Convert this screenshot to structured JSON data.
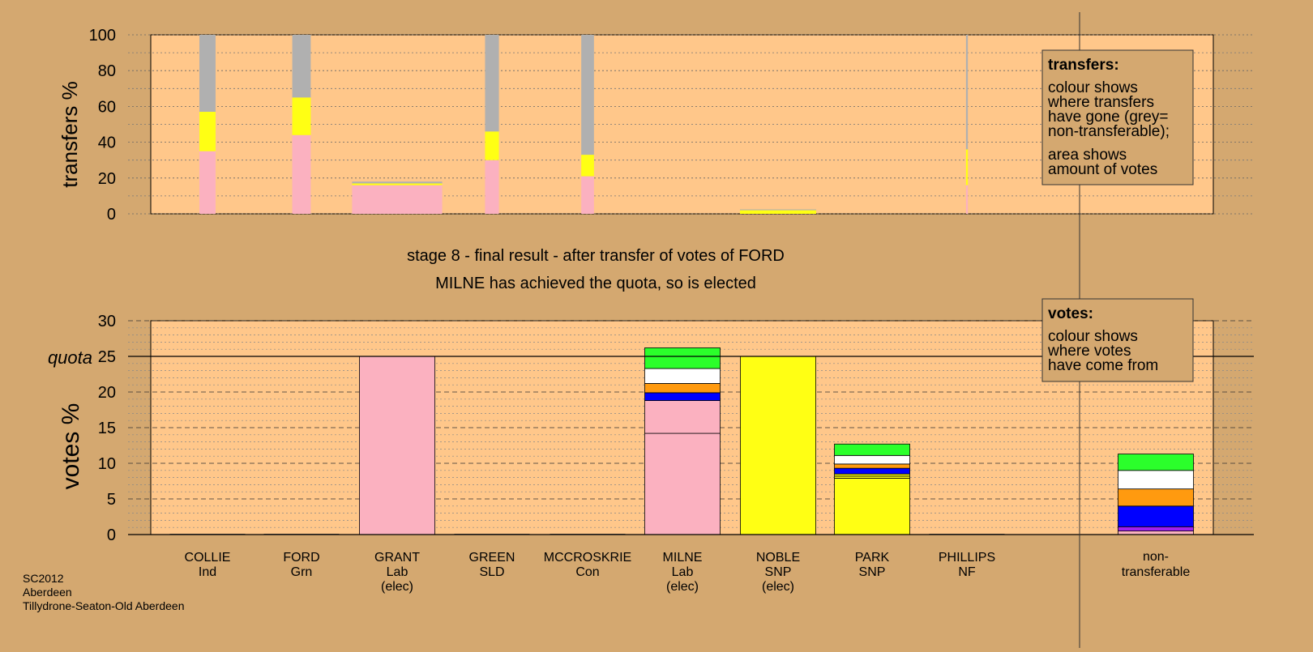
{
  "colors": {
    "background": "#d4a870",
    "plot_area": "#ffc78a",
    "Lab": "#fbb1c0",
    "SNP": "#ffff14",
    "Con": "#0000ff",
    "Grn": "#2bff2b",
    "SLD": "#ff9a0f",
    "Ind": "#ffffff",
    "NF": "#a020f0",
    "non_transferable": "#b0b0b0"
  },
  "title": {
    "line1": "stage 8 - final result - after transfer of votes of FORD",
    "line2": "MILNE has achieved the quota, so is elected"
  },
  "transfers_legend": {
    "heading": "transfers:",
    "lines": [
      "colour shows",
      "where transfers",
      "have gone (grey=",
      "non-transferable);",
      "area shows",
      "amount of votes"
    ]
  },
  "votes_legend": {
    "heading": "votes:",
    "lines": [
      "colour shows",
      "where votes",
      "have come from"
    ]
  },
  "footer": {
    "lines": [
      "SC2012",
      "Aberdeen",
      "Tillydrone-Seaton-Old Aberdeen"
    ]
  },
  "chart_data": [
    {
      "type": "bar",
      "name": "transfers",
      "ylabel": "transfers %",
      "ylim": [
        0,
        100
      ],
      "yticks": [
        0,
        20,
        40,
        60,
        80,
        100
      ],
      "grid": true,
      "bars": [
        {
          "candidate": "COLLIE",
          "width_share": 0.7,
          "segments": [
            {
              "party": "Lab",
              "value": 35
            },
            {
              "party": "SNP",
              "value": 22
            },
            {
              "party": "non_transferable",
              "value": 43
            }
          ]
        },
        {
          "candidate": "FORD",
          "width_share": 0.8,
          "segments": [
            {
              "party": "Lab",
              "value": 44
            },
            {
              "party": "SNP",
              "value": 21
            },
            {
              "party": "non_transferable",
              "value": 35
            }
          ]
        },
        {
          "candidate": "GRANT",
          "width_share": 3.9,
          "segments": [
            {
              "party": "Lab",
              "value": 16
            },
            {
              "party": "SNP",
              "value": 1
            },
            {
              "party": "non_transferable",
              "value": 1
            }
          ]
        },
        {
          "candidate": "GREEN",
          "width_share": 0.6,
          "segments": [
            {
              "party": "Lab",
              "value": 30
            },
            {
              "party": "SNP",
              "value": 16
            },
            {
              "party": "non_transferable",
              "value": 54
            }
          ]
        },
        {
          "candidate": "MCCROSKRIE",
          "width_share": 0.55,
          "segments": [
            {
              "party": "Lab",
              "value": 21
            },
            {
              "party": "SNP",
              "value": 12
            },
            {
              "party": "non_transferable",
              "value": 67
            }
          ]
        },
        {
          "candidate": "NOBLE",
          "width_share": 3.3,
          "segments": [
            {
              "party": "SNP",
              "value": 2
            },
            {
              "party": "non_transferable",
              "value": 0.5
            }
          ]
        },
        {
          "candidate": "PHILLIPS",
          "width_share": 0.08,
          "segments": [
            {
              "party": "Lab",
              "value": 16
            },
            {
              "party": "SNP",
              "value": 20
            },
            {
              "party": "non_transferable",
              "value": 64
            }
          ]
        }
      ]
    },
    {
      "type": "bar",
      "name": "votes",
      "ylabel": "votes %",
      "ylim": [
        0,
        30
      ],
      "yticks": [
        0,
        5,
        10,
        15,
        20,
        25,
        30
      ],
      "quota": 25,
      "quota_label": "quota",
      "categories": [
        {
          "name": "COLLIE",
          "party": "Ind",
          "status": ""
        },
        {
          "name": "FORD",
          "party": "Grn",
          "status": ""
        },
        {
          "name": "GRANT",
          "party": "Lab",
          "status": "(elec)"
        },
        {
          "name": "GREEN",
          "party": "SLD",
          "status": ""
        },
        {
          "name": "MCCROSKRIE",
          "party": "Con",
          "status": ""
        },
        {
          "name": "MILNE",
          "party": "Lab",
          "status": "(elec)"
        },
        {
          "name": "NOBLE",
          "party": "SNP",
          "status": "(elec)"
        },
        {
          "name": "PARK",
          "party": "SNP",
          "status": ""
        },
        {
          "name": "PHILLIPS",
          "party": "NF",
          "status": ""
        }
      ],
      "nontransferable_label": [
        "non-",
        "transferable"
      ],
      "stacks": [
        {
          "candidate": "COLLIE",
          "segments": []
        },
        {
          "candidate": "FORD",
          "segments": []
        },
        {
          "candidate": "GRANT",
          "segments": [
            {
              "party": "Lab",
              "value": 25
            }
          ]
        },
        {
          "candidate": "GREEN",
          "segments": []
        },
        {
          "candidate": "MCCROSKRIE",
          "segments": []
        },
        {
          "candidate": "MILNE",
          "segments": [
            {
              "party": "Lab",
              "value": 14.2
            },
            {
              "party": "Lab",
              "value": 4.6
            },
            {
              "party": "Con",
              "value": 1.1
            },
            {
              "party": "SLD",
              "value": 1.3
            },
            {
              "party": "Ind",
              "value": 2.1
            },
            {
              "party": "Grn",
              "value": 2.9
            }
          ]
        },
        {
          "candidate": "NOBLE",
          "segments": [
            {
              "party": "SNP",
              "value": 25
            }
          ]
        },
        {
          "candidate": "PARK",
          "segments": [
            {
              "party": "SNP",
              "value": 7.9
            },
            {
              "party": "SNP",
              "value": 0.3
            },
            {
              "party": "SNP",
              "value": 0.3
            },
            {
              "party": "Con",
              "value": 0.8
            },
            {
              "party": "SLD",
              "value": 0.6
            },
            {
              "party": "Ind",
              "value": 1.2
            },
            {
              "party": "Grn",
              "value": 1.6
            }
          ]
        },
        {
          "candidate": "PHILLIPS",
          "segments": []
        },
        {
          "candidate": "non-transferable",
          "segments": [
            {
              "party": "Lab",
              "value": 0.5
            },
            {
              "party": "NF",
              "value": 0.6
            },
            {
              "party": "Con",
              "value": 2.9
            },
            {
              "party": "SLD",
              "value": 2.4
            },
            {
              "party": "Ind",
              "value": 2.6
            },
            {
              "party": "Grn",
              "value": 2.3
            }
          ]
        }
      ]
    }
  ]
}
